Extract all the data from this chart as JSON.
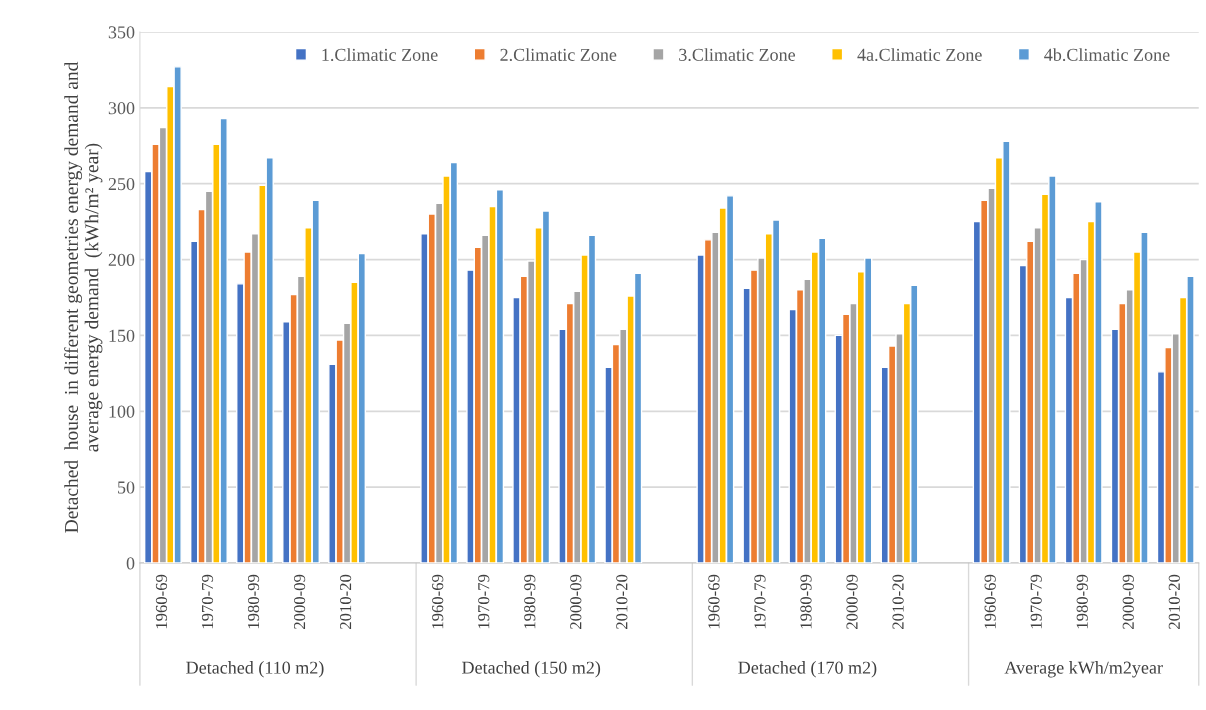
{
  "chart_data": {
    "type": "bar",
    "ylabel": "Detached  house  in different geometries energy demand and\naverage energy demand  (kWh/m² year)",
    "categories": [
      "1960-69",
      "1970-79",
      "1980-99",
      "2000-09",
      "2010-20",
      null,
      "1960-69",
      "1970-79",
      "1980-99",
      "2000-09",
      "2010-20",
      null,
      "1960-69",
      "1970-79",
      "1980-99",
      "2000-09",
      "2010-20",
      null,
      "1960-69",
      "1970-79",
      "1980-99",
      "2000-09",
      "2010-20"
    ],
    "series": [
      {
        "name": "1.Climatic Zone",
        "color": "#4472c4",
        "values": [
          258,
          212,
          184,
          159,
          131,
          null,
          217,
          193,
          175,
          154,
          129,
          null,
          203,
          181,
          167,
          150,
          129,
          null,
          225,
          196,
          175,
          154,
          126
        ]
      },
      {
        "name": "2.Climatic Zone",
        "color": "#ed7d31",
        "values": [
          276,
          233,
          205,
          177,
          147,
          null,
          230,
          208,
          189,
          171,
          144,
          null,
          213,
          193,
          180,
          164,
          143,
          null,
          239,
          212,
          191,
          171,
          142
        ]
      },
      {
        "name": "3.Climatic Zone",
        "color": "#a5a5a5",
        "values": [
          287,
          245,
          217,
          189,
          158,
          null,
          237,
          216,
          199,
          179,
          154,
          null,
          218,
          201,
          187,
          171,
          151,
          null,
          247,
          221,
          200,
          180,
          151
        ]
      },
      {
        "name": "4a.Climatic Zone",
        "color": "#ffc000",
        "values": [
          314,
          276,
          249,
          221,
          185,
          null,
          255,
          235,
          221,
          203,
          176,
          null,
          234,
          217,
          205,
          192,
          171,
          null,
          267,
          243,
          225,
          205,
          175
        ]
      },
      {
        "name": "4b.Climatic Zone",
        "color": "#5b9bd5",
        "values": [
          327,
          293,
          267,
          239,
          204,
          null,
          264,
          246,
          232,
          216,
          191,
          null,
          242,
          226,
          214,
          201,
          183,
          null,
          278,
          255,
          238,
          218,
          189
        ]
      }
    ],
    "annotations": [
      "Detached (110 m2)",
      "Detached (150 m2)",
      "Detached (170 m2)",
      "Average kWh/m2year"
    ],
    "ylim": [
      0,
      350
    ],
    "yticks": [
      0,
      50,
      100,
      150,
      200,
      250,
      300,
      350
    ],
    "grid": "y",
    "legend": "top"
  }
}
